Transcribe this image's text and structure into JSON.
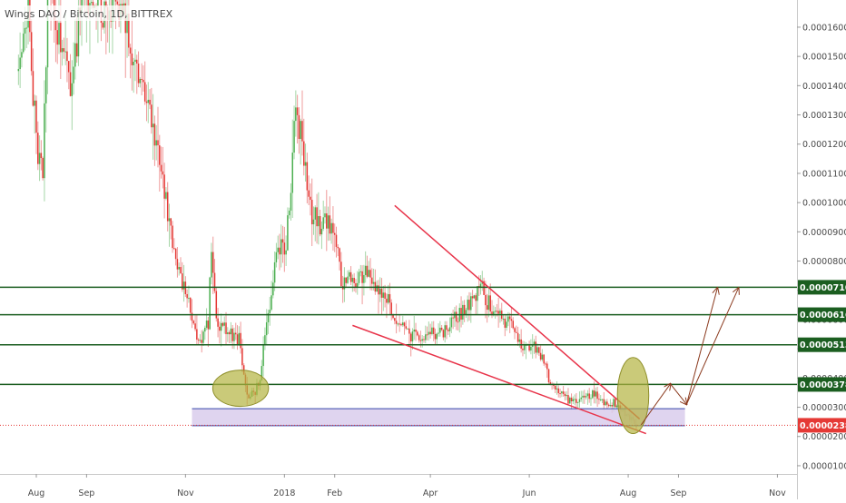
{
  "colors": {
    "up": "#4caf50",
    "down": "#e53935",
    "up_wick": "#a5d6a7",
    "down_wick": "#ef9a9a",
    "level_line": "#1b5e20",
    "trend_line": "#e8344a",
    "projection": "#8b3a1e",
    "support_zone_fill": "#d9ccec",
    "support_zone_border": "#3949ab",
    "highlight": "#b3b340",
    "current_price": "#e53935"
  },
  "chart_data": {
    "type": "candlestick",
    "title": "Wings DAO / Bitcoin, 1D, BITTREX",
    "xlabel": "",
    "ylabel": "",
    "ylim": [
      7e-06,
      0.000175
    ],
    "x_range": [
      "2017-07-21",
      "2018-11-10"
    ],
    "grid": false,
    "y_ticks": [
      "0.00001000",
      "0.00002000",
      "0.00003000",
      "0.00004000",
      "0.00005000",
      "0.00006000",
      "0.00007000",
      "0.00008000",
      "0.00009000",
      "0.00010000",
      "0.00011000",
      "0.00012000",
      "0.00013000",
      "0.00014000",
      "0.00015000",
      "0.00016000"
    ],
    "x_ticks": [
      {
        "label": "Aug",
        "date": "2017-08-01"
      },
      {
        "label": "Sep",
        "date": "2017-09-01"
      },
      {
        "label": "Nov",
        "date": "2017-11-01"
      },
      {
        "label": "2018",
        "date": "2018-01-01"
      },
      {
        "label": "Feb",
        "date": "2018-02-01"
      },
      {
        "label": "Apr",
        "date": "2018-04-01"
      },
      {
        "label": "Jun",
        "date": "2018-06-01"
      },
      {
        "label": "Aug",
        "date": "2018-08-01"
      },
      {
        "label": "Sep",
        "date": "2018-09-01"
      },
      {
        "label": "Nov",
        "date": "2018-11-01"
      }
    ],
    "levels": [
      {
        "label": "0.00007104",
        "value": 7.104e-05
      },
      {
        "label": "0.00006167",
        "value": 6.167e-05
      },
      {
        "label": "0.00005138",
        "value": 5.138e-05
      },
      {
        "label": "0.00003780",
        "value": 3.78e-05
      }
    ],
    "current_price": {
      "label": "0.00002383",
      "value": 2.383e-05
    },
    "support_zone": {
      "start": "2017-11-05",
      "end": "2018-09-05",
      "low": 2.37e-05,
      "high": 2.95e-05
    },
    "trendlines": [
      {
        "from": {
          "date": "2018-03-10",
          "value": 9.9e-05
        },
        "to": {
          "date": "2018-08-08",
          "value": 2.6e-05
        }
      },
      {
        "from": {
          "date": "2018-02-12",
          "value": 5.8e-05
        },
        "to": {
          "date": "2018-08-12",
          "value": 2.1e-05
        }
      }
    ],
    "projection": [
      {
        "date": "2018-08-09",
        "value": 2.4e-05
      },
      {
        "date": "2018-08-27",
        "value": 3.8e-05
      },
      {
        "date": "2018-09-06",
        "value": 3.1e-05
      },
      {
        "date": "2018-09-25",
        "value": 7.08e-05
      }
    ],
    "projection_alt": [
      {
        "date": "2018-09-06",
        "value": 3.1e-05
      },
      {
        "date": "2018-10-08",
        "value": 7.08e-05
      }
    ],
    "highlights": [
      {
        "date": "2017-12-05",
        "value": 3.65e-05,
        "rx_days": 8,
        "ry_value": 6.2e-06
      },
      {
        "date": "2018-08-04",
        "value": 3.4e-05,
        "rx_days": 4.5,
        "ry_value": 1.3e-05
      }
    ],
    "anchors": [
      {
        "date": "2017-07-21",
        "value": 0.000145
      },
      {
        "date": "2017-07-27",
        "value": 0.000165
      },
      {
        "date": "2017-08-01",
        "value": 0.00012
      },
      {
        "date": "2017-08-05",
        "value": 0.00011
      },
      {
        "date": "2017-08-08",
        "value": 0.000172
      },
      {
        "date": "2017-08-15",
        "value": 0.000155
      },
      {
        "date": "2017-08-22",
        "value": 0.00014
      },
      {
        "date": "2017-08-29",
        "value": 0.000168
      },
      {
        "date": "2017-09-06",
        "value": 0.00017
      },
      {
        "date": "2017-09-12",
        "value": 0.000162
      },
      {
        "date": "2017-09-18",
        "value": 0.00017
      },
      {
        "date": "2017-09-25",
        "value": 0.000165
      },
      {
        "date": "2017-10-02",
        "value": 0.000145
      },
      {
        "date": "2017-10-08",
        "value": 0.000135
      },
      {
        "date": "2017-10-14",
        "value": 0.00012
      },
      {
        "date": "2017-10-20",
        "value": 0.000102
      },
      {
        "date": "2017-10-25",
        "value": 8.2e-05
      },
      {
        "date": "2017-10-30",
        "value": 7.3e-05
      },
      {
        "date": "2017-11-04",
        "value": 6.3e-05
      },
      {
        "date": "2017-11-08",
        "value": 5.2e-05
      },
      {
        "date": "2017-11-12",
        "value": 5.3e-05
      },
      {
        "date": "2017-11-15",
        "value": 6e-05
      },
      {
        "date": "2017-11-17",
        "value": 8.5e-05
      },
      {
        "date": "2017-11-20",
        "value": 6e-05
      },
      {
        "date": "2017-11-25",
        "value": 5.8e-05
      },
      {
        "date": "2017-11-30",
        "value": 5.5e-05
      },
      {
        "date": "2017-12-04",
        "value": 5.4e-05
      },
      {
        "date": "2017-12-07",
        "value": 4e-05
      },
      {
        "date": "2017-12-10",
        "value": 3.3e-05
      },
      {
        "date": "2017-12-13",
        "value": 3.5e-05
      },
      {
        "date": "2017-12-17",
        "value": 3.8e-05
      },
      {
        "date": "2017-12-20",
        "value": 5.5e-05
      },
      {
        "date": "2017-12-23",
        "value": 6.5e-05
      },
      {
        "date": "2017-12-26",
        "value": 8e-05
      },
      {
        "date": "2017-12-29",
        "value": 8.5e-05
      },
      {
        "date": "2018-01-02",
        "value": 8.7e-05
      },
      {
        "date": "2018-01-05",
        "value": 0.000105
      },
      {
        "date": "2018-01-08",
        "value": 0.000135
      },
      {
        "date": "2018-01-11",
        "value": 0.000125
      },
      {
        "date": "2018-01-14",
        "value": 0.00011
      },
      {
        "date": "2018-01-18",
        "value": 9.5e-05
      },
      {
        "date": "2018-01-23",
        "value": 9.2e-05
      },
      {
        "date": "2018-01-28",
        "value": 9.5e-05
      },
      {
        "date": "2018-02-02",
        "value": 8.5e-05
      },
      {
        "date": "2018-02-06",
        "value": 7.2e-05
      },
      {
        "date": "2018-02-10",
        "value": 7.5e-05
      },
      {
        "date": "2018-02-15",
        "value": 7.3e-05
      },
      {
        "date": "2018-02-20",
        "value": 7.8e-05
      },
      {
        "date": "2018-02-25",
        "value": 7.2e-05
      },
      {
        "date": "2018-03-02",
        "value": 6.8e-05
      },
      {
        "date": "2018-03-06",
        "value": 6.6e-05
      },
      {
        "date": "2018-03-10",
        "value": 6e-05
      },
      {
        "date": "2018-03-15",
        "value": 5.8e-05
      },
      {
        "date": "2018-03-20",
        "value": 5.5e-05
      },
      {
        "date": "2018-03-26",
        "value": 5.4e-05
      },
      {
        "date": "2018-04-01",
        "value": 5.4e-05
      },
      {
        "date": "2018-04-08",
        "value": 5.5e-05
      },
      {
        "date": "2018-04-14",
        "value": 5.9e-05
      },
      {
        "date": "2018-04-20",
        "value": 6.2e-05
      },
      {
        "date": "2018-04-26",
        "value": 6.6e-05
      },
      {
        "date": "2018-05-02",
        "value": 7.2e-05
      },
      {
        "date": "2018-05-06",
        "value": 6.6e-05
      },
      {
        "date": "2018-05-10",
        "value": 6.2e-05
      },
      {
        "date": "2018-05-15",
        "value": 6e-05
      },
      {
        "date": "2018-05-20",
        "value": 6e-05
      },
      {
        "date": "2018-05-25",
        "value": 5.3e-05
      },
      {
        "date": "2018-05-30",
        "value": 5e-05
      },
      {
        "date": "2018-06-04",
        "value": 5.2e-05
      },
      {
        "date": "2018-06-08",
        "value": 4.8e-05
      },
      {
        "date": "2018-06-12",
        "value": 4.2e-05
      },
      {
        "date": "2018-06-16",
        "value": 3.7e-05
      },
      {
        "date": "2018-06-20",
        "value": 3.5e-05
      },
      {
        "date": "2018-06-25",
        "value": 3.3e-05
      },
      {
        "date": "2018-06-30",
        "value": 3.2e-05
      },
      {
        "date": "2018-07-05",
        "value": 3.3e-05
      },
      {
        "date": "2018-07-10",
        "value": 3.5e-05
      },
      {
        "date": "2018-07-14",
        "value": 3.3e-05
      },
      {
        "date": "2018-07-18",
        "value": 3.1e-05
      },
      {
        "date": "2018-07-22",
        "value": 3.2e-05
      },
      {
        "date": "2018-07-26",
        "value": 3e-05
      },
      {
        "date": "2018-07-30",
        "value": 2.8e-05
      },
      {
        "date": "2018-08-03",
        "value": 2.6e-05
      },
      {
        "date": "2018-08-06",
        "value": 2.38e-05
      }
    ]
  }
}
